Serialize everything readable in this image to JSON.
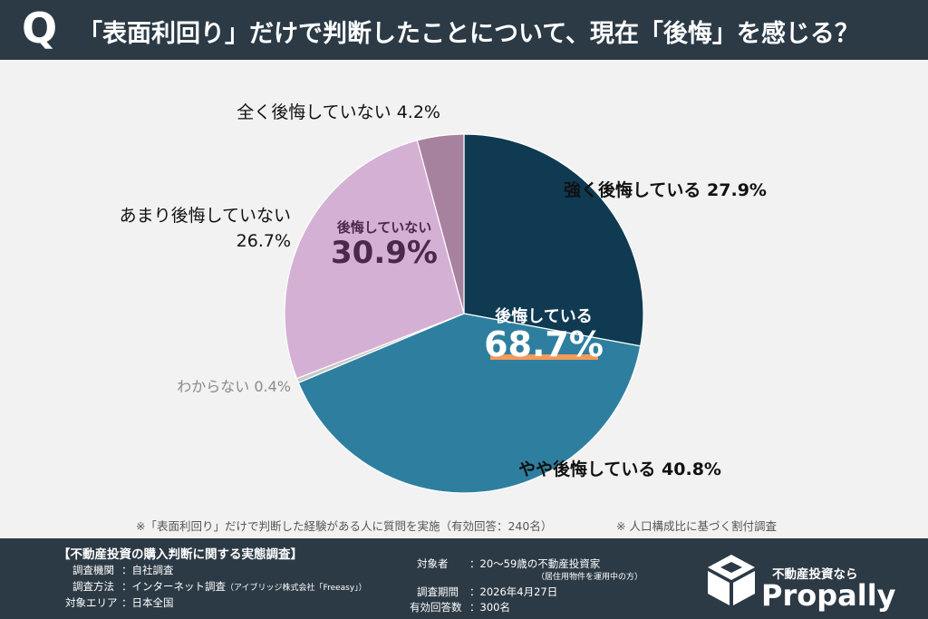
{
  "header": {
    "q_letter": "Q",
    "question": "「表面利回り」だけで判断したことについて、現在「後悔」を感じる？"
  },
  "chart_data": {
    "type": "pie",
    "slices": [
      {
        "label": "強く後悔している",
        "value": 27.9,
        "value_label": "27.9%",
        "color": "#0f3a52"
      },
      {
        "label": "やや後悔している",
        "value": 40.8,
        "value_label": "40.8%",
        "color": "#2e7f9f"
      },
      {
        "label": "わからない",
        "value": 0.4,
        "value_label": "0.4%",
        "color": "#c9c9c9"
      },
      {
        "label": "あまり後悔していない",
        "value": 26.7,
        "value_label": "26.7%",
        "color": "#d5b0d5"
      },
      {
        "label": "全く後悔していない",
        "value": 4.2,
        "value_label": "4.2%",
        "color": "#a7829f"
      }
    ],
    "groups": [
      {
        "label": "後悔している",
        "value": 68.7,
        "value_label": "68.7%",
        "text_color": "#ffffff",
        "underline_color": "#f39a5a"
      },
      {
        "label": "後悔していない",
        "value": 30.9,
        "value_label": "30.9%",
        "text_color": "#4a2a4c"
      }
    ]
  },
  "footnotes": {
    "left": "※「表面利回り」だけで判断した経験がある人に質問を実施（有効回答：240名）",
    "right": "※ 人口構成比に基づく割付調査"
  },
  "footer": {
    "title": "【不動産投資の購入判断に関する実態調査】",
    "rows_left": [
      {
        "key": "調査機関",
        "value": "：自社調査",
        "sub": ""
      },
      {
        "key": "調査方法",
        "value": "：インターネット調査",
        "sub": "（アイブリッジ株式会社「Freeasy」）"
      },
      {
        "key": "対象エリア",
        "value": "：日本全国",
        "sub": ""
      }
    ],
    "target_key": "対象者",
    "target_value": "：20〜59歳の不動産投資家",
    "target_sub": "（居住用物件を運用中の方）",
    "rows_right": [
      {
        "key": "調査期間",
        "value": "：2026年4月27日"
      },
      {
        "key": "有効回答数",
        "value": "：300名"
      }
    ],
    "brand_tagline": "不動産投資なら",
    "brand_name": "Propally"
  }
}
